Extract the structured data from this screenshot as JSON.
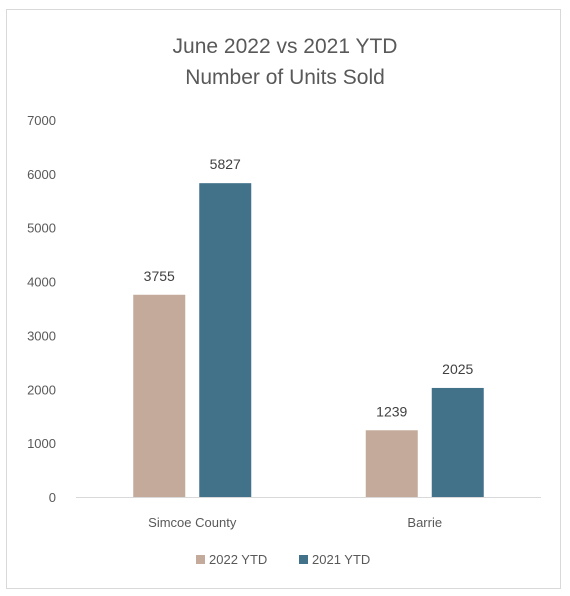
{
  "chart_data": {
    "type": "bar",
    "title": [
      "June 2022 vs 2021 YTD",
      "Number of Units Sold"
    ],
    "categories": [
      "Simcoe County",
      "Barrie"
    ],
    "series": [
      {
        "name": "2022 YTD",
        "values": [
          3755,
          1239
        ],
        "color": "#c4aa9b"
      },
      {
        "name": "2021 YTD",
        "values": [
          5827,
          2025
        ],
        "color": "#42728a"
      }
    ],
    "ylim": [
      0,
      7000
    ],
    "yticks": [
      "0",
      "1000",
      "2000",
      "3000",
      "4000",
      "5000",
      "6000",
      "7000"
    ],
    "grid": false,
    "legend_position": "bottom"
  }
}
